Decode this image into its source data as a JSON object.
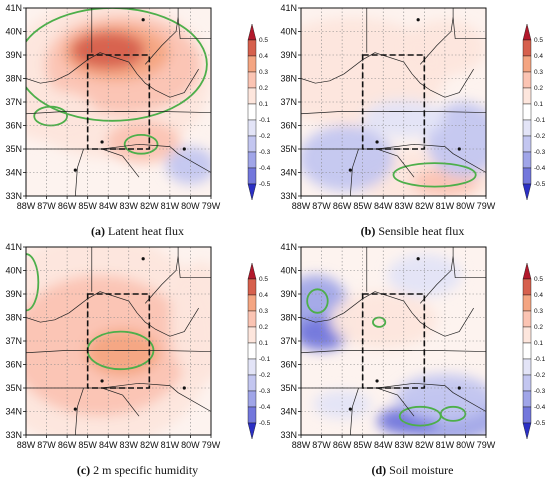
{
  "scale": {
    "ticks": [
      "0.5",
      "0.4",
      "0.3",
      "0.2",
      "0.1",
      "-0.1",
      "-0.2",
      "-0.3",
      "-0.4",
      "-0.5"
    ],
    "colors": [
      "#b2182b",
      "#d6604d",
      "#f4a582",
      "#fbc4b3",
      "#fde6dd",
      "#ffffff",
      "#e3e4f7",
      "#c3c6f0",
      "#a0a5e8",
      "#7377dc",
      "#2b2fc4"
    ]
  },
  "lat_labels": [
    "41N",
    "40N",
    "39N",
    "38N",
    "37N",
    "36N",
    "35N",
    "34N",
    "33N"
  ],
  "lon_labels": [
    "88W",
    "87W",
    "86W",
    "85W",
    "84W",
    "83W",
    "82W",
    "81W",
    "80W",
    "79W"
  ],
  "panels": [
    {
      "letter": "(a)",
      "title": "Latent heat flux",
      "field": "latent"
    },
    {
      "letter": "(b)",
      "title": "Sensible heat flux",
      "field": "sensible"
    },
    {
      "letter": "(c)",
      "title": "2 m specific humidity",
      "field": "humidity"
    },
    {
      "letter": "(d)",
      "title": "Soil moisture",
      "field": "soil"
    }
  ],
  "box_lon_range": [
    "85W",
    "82W"
  ],
  "box_lat_range": [
    "35N",
    "39N"
  ],
  "contour_color": "#4daf4a"
}
